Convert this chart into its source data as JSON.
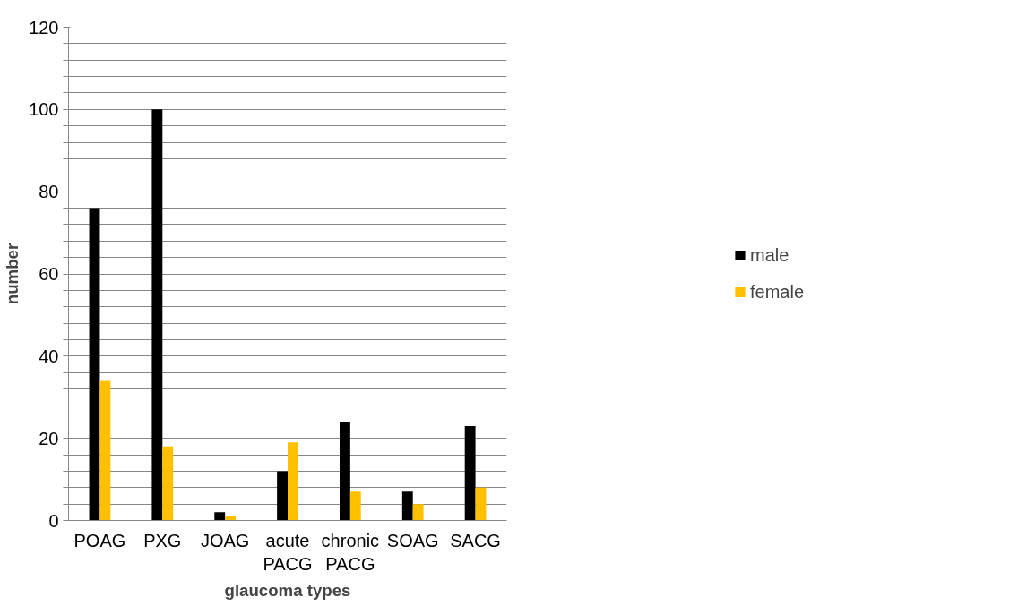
{
  "chart_data": {
    "type": "bar",
    "xlabel": "glaucoma types",
    "ylabel": "number",
    "categories": [
      "POAG",
      "PXG",
      "JOAG",
      "acute PACG",
      "chronic PACG",
      "SOAG",
      "SACG"
    ],
    "series": [
      {
        "name": "male",
        "color": "#000000",
        "values": [
          76,
          100,
          2,
          12,
          24,
          7,
          23
        ]
      },
      {
        "name": "female",
        "color": "#ffc000",
        "values": [
          34,
          18,
          1,
          19,
          7,
          4,
          8
        ]
      }
    ],
    "ylim": [
      0,
      120
    ],
    "yticks": [
      0,
      {
        "value": 4,
        "label": null
      },
      {
        "value": 8,
        "label": null
      },
      {
        "value": 12,
        "label": null
      },
      {
        "value": 16,
        "label": null
      },
      20,
      {
        "value": 24,
        "label": null
      },
      {
        "value": 28,
        "label": null
      },
      {
        "value": 32,
        "label": null
      },
      {
        "value": 36,
        "label": null
      },
      40,
      {
        "value": 44,
        "label": null
      },
      {
        "value": 48,
        "label": null
      },
      {
        "value": 52,
        "label": null
      },
      {
        "value": 56,
        "label": null
      },
      60,
      {
        "value": 64,
        "label": null
      },
      {
        "value": 68,
        "label": null
      },
      {
        "value": 72,
        "label": null
      },
      {
        "value": 76,
        "label": null
      },
      80,
      {
        "value": 84,
        "label": null
      },
      {
        "value": 88,
        "label": null
      },
      {
        "value": 92,
        "label": null
      },
      {
        "value": 96,
        "label": null
      },
      100,
      {
        "value": 104,
        "label": null
      },
      {
        "value": 108,
        "label": null
      },
      {
        "value": 112,
        "label": null
      },
      {
        "value": 116,
        "label": null
      },
      120
    ],
    "grid": "y",
    "legend": "right"
  }
}
